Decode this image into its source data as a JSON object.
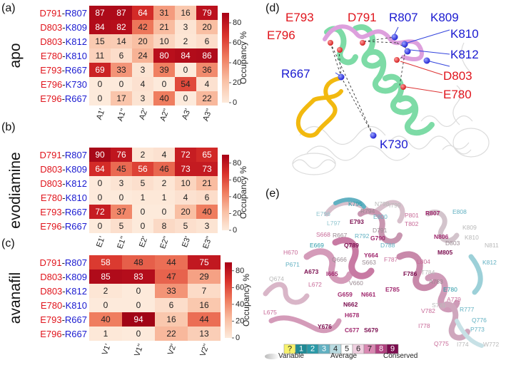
{
  "figure": {
    "panel_letters": [
      "(a)",
      "(b)",
      "(c)",
      "(d)",
      "(e)"
    ]
  },
  "colors": {
    "acidic": "#e0141c",
    "basic": "#1a1ad0",
    "helix": "#7ddba6",
    "loop_pink": "#dda0dd",
    "loop_yellow": "#f2b90f"
  },
  "chart_data": [
    {
      "type": "heatmap",
      "panel": "(a)",
      "title": "apo",
      "columns": [
        "A1'",
        "A1''",
        "A2'",
        "A2''",
        "A3'",
        "A3''"
      ],
      "rows": [
        {
          "acid": "D791",
          "base": "R807"
        },
        {
          "acid": "D803",
          "base": "K809"
        },
        {
          "acid": "D803",
          "base": "K812"
        },
        {
          "acid": "E780",
          "base": "K810"
        },
        {
          "acid": "E793",
          "base": "R667"
        },
        {
          "acid": "E796",
          "base": "K730"
        },
        {
          "acid": "E796",
          "base": "R667"
        }
      ],
      "values": [
        [
          87,
          87,
          64,
          31,
          16,
          79
        ],
        [
          84,
          82,
          42,
          21,
          3,
          20
        ],
        [
          15,
          14,
          20,
          10,
          2,
          6
        ],
        [
          11,
          6,
          24,
          80,
          84,
          86
        ],
        [
          69,
          33,
          3,
          39,
          0,
          36
        ],
        [
          0,
          0,
          4,
          0,
          54,
          4
        ],
        [
          0,
          17,
          3,
          40,
          0,
          22
        ]
      ],
      "colorbar": {
        "label": "Occupancy %",
        "ticks": [
          0,
          20,
          40,
          60,
          80
        ],
        "range": [
          0,
          90
        ]
      }
    },
    {
      "type": "heatmap",
      "panel": "(b)",
      "title": "evodiamine",
      "columns": [
        "E1'",
        "E1''",
        "E2'",
        "E2''",
        "E3'",
        "E3''"
      ],
      "rows": [
        {
          "acid": "D791",
          "base": "R807"
        },
        {
          "acid": "D803",
          "base": "K809"
        },
        {
          "acid": "D803",
          "base": "K812"
        },
        {
          "acid": "E780",
          "base": "K810"
        },
        {
          "acid": "E793",
          "base": "R667"
        },
        {
          "acid": "E796",
          "base": "R667"
        }
      ],
      "values": [
        [
          90,
          76,
          2,
          4,
          72,
          65
        ],
        [
          64,
          45,
          56,
          46,
          73,
          73
        ],
        [
          0,
          3,
          5,
          2,
          10,
          21
        ],
        [
          0,
          0,
          1,
          1,
          4,
          6
        ],
        [
          72,
          37,
          0,
          0,
          20,
          40
        ],
        [
          0,
          5,
          0,
          8,
          5,
          3
        ]
      ],
      "colorbar": {
        "label": "Occupancy %",
        "ticks": [
          0,
          20,
          40,
          60,
          80
        ],
        "range": [
          0,
          90
        ]
      }
    },
    {
      "type": "heatmap",
      "panel": "(c)",
      "title": "avanafil",
      "columns": [
        "V1'",
        "V1''",
        "V2'",
        "V2''"
      ],
      "rows": [
        {
          "acid": "D791",
          "base": "R807"
        },
        {
          "acid": "D803",
          "base": "K809"
        },
        {
          "acid": "D803",
          "base": "K812"
        },
        {
          "acid": "E780",
          "base": "K810"
        },
        {
          "acid": "E793",
          "base": "R667"
        },
        {
          "acid": "E796",
          "base": "R667"
        }
      ],
      "values": [
        [
          58,
          48,
          44,
          75
        ],
        [
          85,
          83,
          47,
          29
        ],
        [
          2,
          0,
          33,
          7
        ],
        [
          0,
          0,
          6,
          16
        ],
        [
          40,
          94,
          16,
          44
        ],
        [
          1,
          0,
          22,
          13
        ]
      ],
      "colorbar": {
        "label": "Occupancy %",
        "ticks": [
          0,
          20,
          40,
          60,
          80
        ],
        "range": [
          0,
          90
        ]
      }
    }
  ],
  "structure_d": {
    "labels": [
      {
        "text": "E793",
        "kind": "acid"
      },
      {
        "text": "D791",
        "kind": "acid"
      },
      {
        "text": "R807",
        "kind": "base"
      },
      {
        "text": "K809",
        "kind": "base"
      },
      {
        "text": "E796",
        "kind": "acid"
      },
      {
        "text": "K810",
        "kind": "base"
      },
      {
        "text": "K812",
        "kind": "base"
      },
      {
        "text": "R667",
        "kind": "base"
      },
      {
        "text": "D803",
        "kind": "acid"
      },
      {
        "text": "E780",
        "kind": "acid"
      },
      {
        "text": "K730",
        "kind": "base"
      }
    ]
  },
  "structure_e": {
    "residues": [
      {
        "text": "K795",
        "shade": "c2"
      },
      {
        "text": "N798",
        "shade": "c5"
      },
      {
        "text": "I799",
        "shade": "c5"
      },
      {
        "text": "E796",
        "shade": "c4"
      },
      {
        "text": "R794",
        "shade": "c6"
      },
      {
        "text": "E800",
        "shade": "c3"
      },
      {
        "text": "L797",
        "shade": "c4"
      },
      {
        "text": "E793",
        "shade": "c9"
      },
      {
        "text": "P801",
        "shade": "c7"
      },
      {
        "text": "R807",
        "shade": "c8"
      },
      {
        "text": "E808",
        "shade": "c3"
      },
      {
        "text": "S668",
        "shade": "c7"
      },
      {
        "text": "R667",
        "shade": "c6"
      },
      {
        "text": "R792",
        "shade": "c3"
      },
      {
        "text": "D791",
        "shade": "c6"
      },
      {
        "text": "T802",
        "shade": "c7"
      },
      {
        "text": "N806",
        "shade": "c8"
      },
      {
        "text": "K809",
        "shade": "c5"
      },
      {
        "text": "G790",
        "shade": "c8"
      },
      {
        "text": "D803",
        "shade": "c6"
      },
      {
        "text": "E669",
        "shade": "c2"
      },
      {
        "text": "Q789",
        "shade": "c9"
      },
      {
        "text": "D788",
        "shade": "c3"
      },
      {
        "text": "K810",
        "shade": "c5"
      },
      {
        "text": "N811",
        "shade": "c5"
      },
      {
        "text": "H670",
        "shade": "c7"
      },
      {
        "text": "Q666",
        "shade": "c6"
      },
      {
        "text": "Y664",
        "shade": "c8"
      },
      {
        "text": "M805",
        "shade": "c9"
      },
      {
        "text": "P671",
        "shade": "c3"
      },
      {
        "text": "S663",
        "shade": "c6"
      },
      {
        "text": "F787",
        "shade": "c7"
      },
      {
        "text": "L804",
        "shade": "c7"
      },
      {
        "text": "T784",
        "shade": "c5"
      },
      {
        "text": "K812",
        "shade": "c3"
      },
      {
        "text": "A673",
        "shade": "c9"
      },
      {
        "text": "I665",
        "shade": "c8"
      },
      {
        "text": "F786",
        "shade": "c9"
      },
      {
        "text": "A783",
        "shade": "c6"
      },
      {
        "text": "Q674",
        "shade": "c5"
      },
      {
        "text": "L672",
        "shade": "c7"
      },
      {
        "text": "V660",
        "shade": "c6"
      },
      {
        "text": "E785",
        "shade": "c8"
      },
      {
        "text": "E780",
        "shade": "c2"
      },
      {
        "text": "G659",
        "shade": "c8"
      },
      {
        "text": "N661",
        "shade": "c8"
      },
      {
        "text": "A779",
        "shade": "c7"
      },
      {
        "text": "N662",
        "shade": "c9"
      },
      {
        "text": "V782",
        "shade": "c7"
      },
      {
        "text": "S781",
        "shade": "c5"
      },
      {
        "text": "L675",
        "shade": "c7"
      },
      {
        "text": "R777",
        "shade": "c3"
      },
      {
        "text": "H678",
        "shade": "c8"
      },
      {
        "text": "I778",
        "shade": "c7"
      },
      {
        "text": "Q776",
        "shade": "c3"
      },
      {
        "text": "P773",
        "shade": "c3"
      },
      {
        "text": "Y676",
        "shade": "c9"
      },
      {
        "text": "C677",
        "shade": "c8"
      },
      {
        "text": "S679",
        "shade": "c9"
      },
      {
        "text": "Q775",
        "shade": "c7"
      },
      {
        "text": "I774",
        "shade": "c5"
      },
      {
        "text": "W772",
        "shade": "c5"
      }
    ],
    "legend": {
      "boxes": [
        "?",
        "1",
        "2",
        "3",
        "4",
        "5",
        "6",
        "7",
        "8",
        "9"
      ],
      "variable": "Variable",
      "average": "Average",
      "conserved": "Conserved"
    }
  }
}
